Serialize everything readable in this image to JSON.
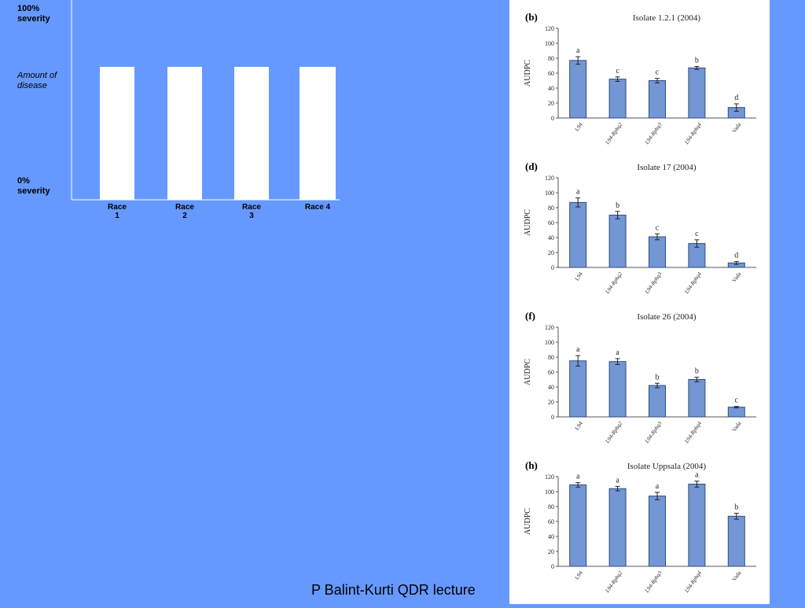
{
  "schematic": {
    "y_top_label_1": "100%",
    "y_top_label_2": "severity",
    "y_mid_label_1": "Amount of",
    "y_mid_label_2": "disease",
    "y_bottom_label_1": "0%",
    "y_bottom_label_2": "severity",
    "races": [
      {
        "l1": "Race",
        "l2": "1"
      },
      {
        "l1": "Race",
        "l2": "2"
      },
      {
        "l1": "Race",
        "l2": "3"
      },
      {
        "l1": "Race 4",
        "l2": ""
      }
    ]
  },
  "credit": "P Balint-Kurti QDR lecture",
  "chart_data": [
    {
      "type": "bar",
      "panel": "(b)",
      "title": "Isolate 1.2.1 (2004)",
      "ylabel": "AUDPC",
      "ylim": [
        0,
        120
      ],
      "yticks": [
        0,
        20,
        40,
        60,
        80,
        100,
        120
      ],
      "categories": [
        "L94",
        "L94-Rphq2",
        "L94-Rphq3",
        "L94-Rphq4",
        "Vada"
      ],
      "values": [
        77,
        52,
        50,
        67,
        14
      ],
      "errors": [
        5,
        3,
        3,
        2,
        5
      ],
      "letters": [
        "a",
        "c",
        "c",
        "b",
        "d"
      ],
      "grid": false
    },
    {
      "type": "bar",
      "panel": "(d)",
      "title": "Isolate 17 (2004)",
      "ylabel": "AUDPC",
      "ylim": [
        0,
        120
      ],
      "yticks": [
        0,
        20,
        40,
        60,
        80,
        100,
        120
      ],
      "categories": [
        "L94",
        "L94-Rphq2",
        "L94-Rphq3",
        "L94-Rphq4",
        "Vada"
      ],
      "values": [
        87,
        70,
        41,
        32,
        6
      ],
      "errors": [
        6,
        5,
        4,
        5,
        2
      ],
      "letters": [
        "a",
        "b",
        "c",
        "c",
        "d"
      ],
      "grid": false
    },
    {
      "type": "bar",
      "panel": "(f)",
      "title": "Isolate 26 (2004)",
      "ylabel": "AUDPC",
      "ylim": [
        0,
        120
      ],
      "yticks": [
        0,
        20,
        40,
        60,
        80,
        100,
        120
      ],
      "categories": [
        "L94",
        "L94-Rphq2",
        "L94-Rphq3",
        "L94-Rphq4",
        "Vada"
      ],
      "values": [
        75,
        74,
        42,
        50,
        13
      ],
      "errors": [
        7,
        4,
        3,
        3,
        1
      ],
      "letters": [
        "a",
        "a",
        "b",
        "b",
        "c"
      ],
      "grid": false
    },
    {
      "type": "bar",
      "panel": "(h)",
      "title": "Isolate Uppsala (2004)",
      "ylabel": "AUDPC",
      "ylim": [
        0,
        120
      ],
      "yticks": [
        0,
        20,
        40,
        60,
        80,
        100,
        120
      ],
      "categories": [
        "L94",
        "L94-Rphq2",
        "L94-Rphq3",
        "L94-Rphq4",
        "Vada"
      ],
      "values": [
        109,
        104,
        94,
        110,
        67
      ],
      "errors": [
        3,
        3,
        5,
        4,
        4
      ],
      "letters": [
        "a",
        "a",
        "a",
        "a",
        "b"
      ],
      "grid": false
    }
  ],
  "colors": {
    "background": "#6699ff",
    "bar_fill": "#7396d4",
    "bar_stroke": "#2f4b80",
    "schematic_bar": "#ffffff"
  }
}
